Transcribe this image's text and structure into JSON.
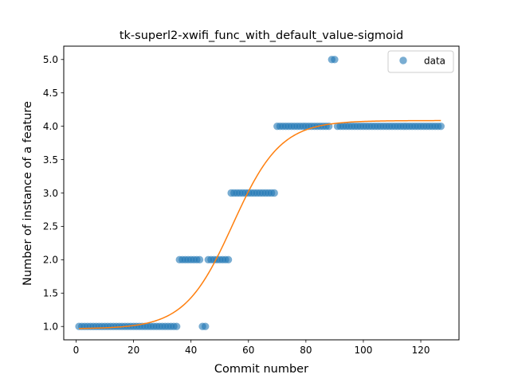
{
  "chart_data": {
    "type": "scatter",
    "title": "tk-superl2-xwifi_func_with_default_value-sigmoid",
    "xlabel": "Commit number",
    "ylabel": "Number of instance of a feature",
    "xlim": [
      -4.3,
      133.3
    ],
    "ylim": [
      0.8,
      5.2
    ],
    "xticks": [
      0,
      20,
      40,
      60,
      80,
      100,
      120
    ],
    "xtick_labels": [
      "0",
      "20",
      "40",
      "60",
      "80",
      "100",
      "120"
    ],
    "yticks": [
      1.0,
      1.5,
      2.0,
      2.5,
      3.0,
      3.5,
      4.0,
      4.5,
      5.0
    ],
    "ytick_labels": [
      "1.0",
      "1.5",
      "2.0",
      "2.5",
      "3.0",
      "3.5",
      "4.0",
      "4.5",
      "5.0"
    ],
    "grid": false,
    "legend_position": "top-right",
    "colors": {
      "data": "#1f77b4",
      "fit": "#ff7f0e"
    },
    "series": [
      {
        "name": "data",
        "kind": "scatter",
        "segments": [
          {
            "x_start": 1,
            "x_end": 35,
            "y": 1
          },
          {
            "x_start": 36,
            "x_end": 43,
            "y": 2
          },
          {
            "x_start": 44,
            "x_end": 45,
            "y": 1
          },
          {
            "x_start": 46,
            "x_end": 53,
            "y": 2
          },
          {
            "x_start": 54,
            "x_end": 69,
            "y": 3
          },
          {
            "x_start": 70,
            "x_end": 88,
            "y": 4
          },
          {
            "x_start": 89,
            "x_end": 90,
            "y": 5
          },
          {
            "x_start": 91,
            "x_end": 127,
            "y": 4
          }
        ]
      },
      {
        "kind": "line",
        "model": "sigmoid",
        "params": {
          "L": 3.12,
          "x0": 54.5,
          "k": 0.12,
          "b": 0.965
        },
        "x_range": [
          1,
          127
        ]
      }
    ]
  }
}
